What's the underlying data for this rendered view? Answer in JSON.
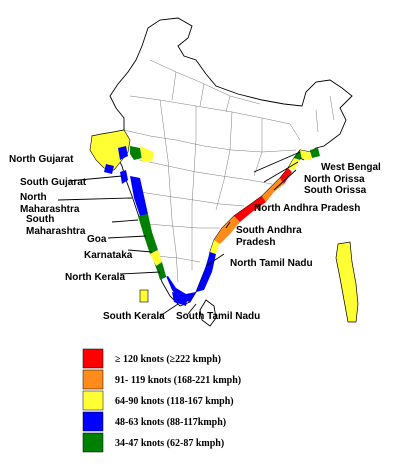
{
  "regions": [
    {
      "id": "north-gujarat",
      "label": "North Gujarat"
    },
    {
      "id": "south-gujarat",
      "label": "South Gujarat"
    },
    {
      "id": "north-maharashtra",
      "label": "North\nMaharashtra"
    },
    {
      "id": "south-maharashtra",
      "label": "South\nMaharashtra"
    },
    {
      "id": "goa",
      "label": "Goa"
    },
    {
      "id": "karnataka",
      "label": "Karnataka"
    },
    {
      "id": "north-kerala",
      "label": "North Kerala"
    },
    {
      "id": "south-kerala",
      "label": "South Kerala"
    },
    {
      "id": "south-tamil-nadu",
      "label": "South Tamil Nadu"
    },
    {
      "id": "north-tamil-nadu",
      "label": "North Tamil Nadu"
    },
    {
      "id": "south-andhra-pradesh",
      "label": "South Andhra\nPradesh"
    },
    {
      "id": "north-andhra-pradesh",
      "label": "North Andhra Pradesh"
    },
    {
      "id": "south-orissa",
      "label": "South Orissa"
    },
    {
      "id": "north-orissa",
      "label": "North Orissa"
    },
    {
      "id": "west-bengal",
      "label": "West Bengal"
    }
  ],
  "legend": [
    {
      "label": "≥ 120 knots (≥222 kmph)",
      "color": "#ff0000"
    },
    {
      "label": "91- 119 knots (168-221 kmph)",
      "color": "#ff8c1a"
    },
    {
      "label": "64-90 knots (118-167 kmph)",
      "color": "#ffff33"
    },
    {
      "label": "48-63 knots (88-117kmph)",
      "color": "#0000ff"
    },
    {
      "label": "34-47 knots (62-87 kmph)",
      "color": "#008000"
    }
  ]
}
